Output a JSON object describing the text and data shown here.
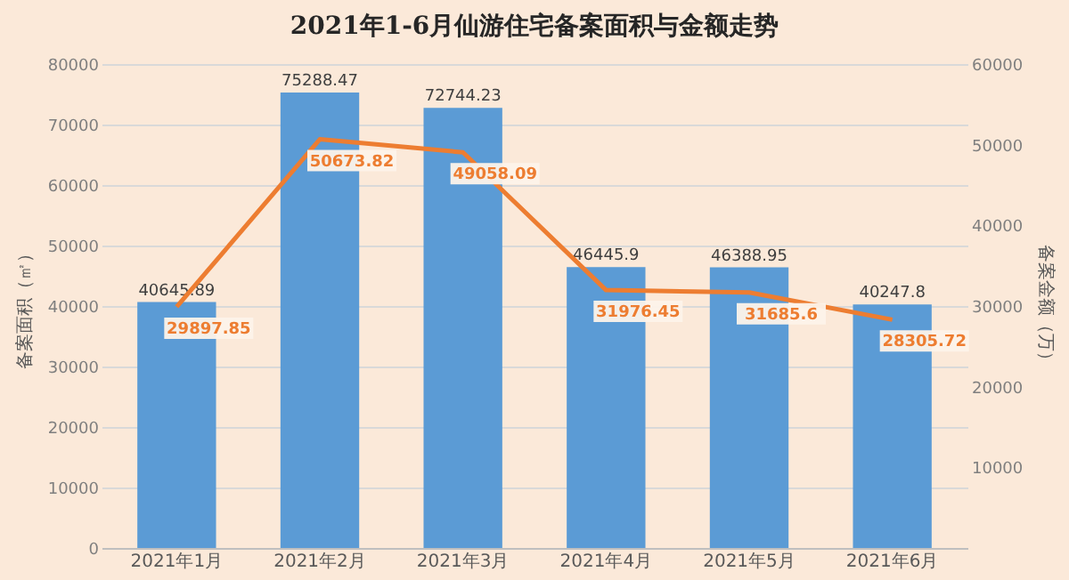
{
  "chart_data": {
    "type": "bar",
    "title": "2021年1-6月仙游住宅备案面积与金额走势",
    "categories": [
      "2021年1月",
      "2021年2月",
      "2021年3月",
      "2021年4月",
      "2021年5月",
      "2021年6月"
    ],
    "series": [
      {
        "color": "#5b9bd5",
        "values": [
          40645.89,
          75288.47,
          72744.23,
          46445.9,
          46388.95,
          40247.8
        ]
      },
      {
        "type": "line",
        "axis": "y2",
        "color": "#ed7d31",
        "values": [
          29897.85,
          50673.82,
          49058.09,
          31976.45,
          31685.6,
          28305.72
        ]
      }
    ],
    "ylabel": "备案面积（㎡）",
    "y2label": "备案金额（万）",
    "ylim": [
      0,
      80000
    ],
    "yticks": [
      0,
      10000,
      20000,
      30000,
      40000,
      50000,
      60000,
      70000,
      80000
    ],
    "y2lim": [
      0,
      60000
    ],
    "y2ticks": [
      10000,
      20000,
      30000,
      40000,
      50000,
      60000
    ],
    "grid": "y",
    "data_labels": true,
    "marker": "none"
  }
}
